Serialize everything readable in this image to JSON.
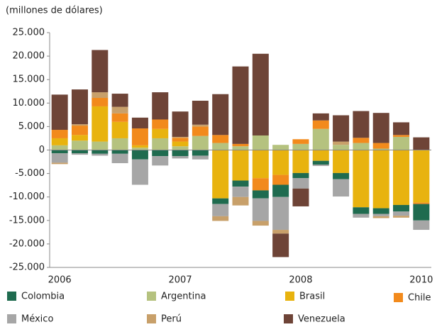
{
  "chart_data": {
    "type": "stacked_bar",
    "subtitle": "(millones de dólares)",
    "categories": [
      "2006",
      null,
      null,
      null,
      null,
      null,
      "2007",
      null,
      null,
      null,
      null,
      null,
      "2008",
      null,
      null,
      null,
      null,
      null,
      "2010"
    ],
    "series": [
      {
        "name": "Colombia",
        "color": "#1f6b4f",
        "values": [
          -700,
          -700,
          -800,
          -800,
          -2000,
          -1300,
          -1300,
          -1200,
          -1200,
          -1300,
          -1700,
          -2600,
          -1100,
          -800,
          -1300,
          -1400,
          -1200,
          -1400,
          -3500
        ]
      },
      {
        "name": "Argentina",
        "color": "#b5c27f",
        "values": [
          1000,
          2000,
          1800,
          2500,
          500,
          2500,
          800,
          3000,
          1500,
          800,
          3100,
          1100,
          1300,
          4500,
          1100,
          1500,
          300,
          2800,
          0
        ]
      },
      {
        "name": "Brasil",
        "color": "#e8b30f",
        "values": [
          1500,
          1200,
          7500,
          3500,
          500,
          2000,
          1000,
          0,
          -10300,
          -6500,
          -6000,
          -5300,
          -4900,
          -2300,
          -4900,
          -12200,
          -12400,
          -11700,
          -11200
        ]
      },
      {
        "name": "Chile",
        "color": "#f28a1c",
        "values": [
          1800,
          2000,
          1800,
          1800,
          3600,
          2000,
          800,
          2000,
          1700,
          500,
          -2600,
          -2100,
          1000,
          1800,
          0,
          1100,
          1200,
          400,
          -300
        ]
      },
      {
        "name": "México",
        "color": "#a6a6a6",
        "values": [
          -2000,
          -300,
          -400,
          -2000,
          -5400,
          -2000,
          -500,
          -800,
          -2600,
          -2200,
          -4800,
          -7000,
          -2200,
          -300,
          -3700,
          -800,
          -500,
          -900,
          -2000
        ]
      },
      {
        "name": "Perú",
        "color": "#c8a06a",
        "values": [
          -300,
          300,
          1200,
          1400,
          0,
          0,
          200,
          400,
          -1000,
          -1800,
          -1000,
          -800,
          0,
          0,
          700,
          0,
          -400,
          -400,
          0
        ]
      },
      {
        "name": "Venezuela",
        "color": "#6e4437",
        "values": [
          7500,
          7400,
          9000,
          2800,
          2300,
          5800,
          5400,
          5100,
          8700,
          16500,
          17400,
          -5000,
          -3800,
          1500,
          5600,
          5700,
          6400,
          2700,
          2700
        ]
      }
    ],
    "ylim": [
      -25000,
      25000
    ],
    "yticks": [
      {
        "value": 25000,
        "label": "25.000"
      },
      {
        "value": 20000,
        "label": "20.000"
      },
      {
        "value": 15000,
        "label": "15.000"
      },
      {
        "value": 10000,
        "label": "10.000"
      },
      {
        "value": 5000,
        "label": "5.000"
      },
      0,
      {
        "value": -5000,
        "label": "-5.000"
      },
      {
        "value": -10000,
        "label": "-10.000"
      },
      {
        "value": -15000,
        "label": "-15.000"
      },
      {
        "value": -20000,
        "label": "-20.000"
      },
      {
        "value": -25000,
        "label": "-25.000"
      }
    ]
  }
}
